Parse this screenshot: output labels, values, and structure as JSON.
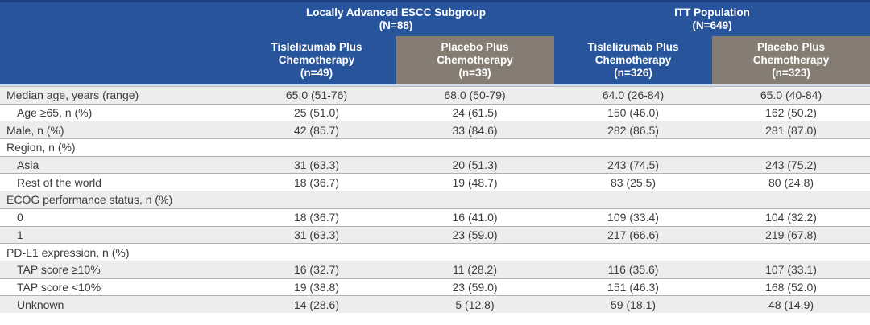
{
  "table": {
    "groups": [
      {
        "title": "Locally Advanced ESCC Subgroup",
        "n": "(N=88)"
      },
      {
        "title": "ITT Population",
        "n": "(N=649)"
      }
    ],
    "columns": [
      {
        "name": "Tislelizumab Plus Chemotherapy",
        "n": "(n=49)"
      },
      {
        "name": "Placebo Plus Chemotherapy",
        "n": "(n=39)"
      },
      {
        "name": "Tislelizumab Plus Chemotherapy",
        "n": "(n=326)"
      },
      {
        "name": "Placebo Plus Chemotherapy",
        "n": "(n=323)"
      }
    ],
    "rows": [
      {
        "label": "Median age, years (range)",
        "values": [
          "65.0 (51-76)",
          "68.0 (50-79)",
          "64.0 (26-84)",
          "65.0 (40-84)"
        ]
      },
      {
        "label": "Age ≥65, n (%)",
        "values": [
          "25 (51.0)",
          "24 (61.5)",
          "150 (46.0)",
          "162 (50.2)"
        ]
      },
      {
        "label": "Male, n (%)",
        "values": [
          "42 (85.7)",
          "33 (84.6)",
          "282 (86.5)",
          "281 (87.0)"
        ]
      },
      {
        "label": "Region, n (%)",
        "values": [
          "",
          "",
          "",
          ""
        ]
      },
      {
        "label": "Asia",
        "values": [
          "31 (63.3)",
          "20 (51.3)",
          "243 (74.5)",
          "243 (75.2)"
        ]
      },
      {
        "label": "Rest of the world",
        "values": [
          "18 (36.7)",
          "19 (48.7)",
          "83 (25.5)",
          "80 (24.8)"
        ]
      },
      {
        "label": "ECOG performance status, n (%)",
        "values": [
          "",
          "",
          "",
          ""
        ]
      },
      {
        "label": "0",
        "values": [
          "18 (36.7)",
          "16 (41.0)",
          "109 (33.4)",
          "104 (32.2)"
        ]
      },
      {
        "label": "1",
        "values": [
          "31 (63.3)",
          "23 (59.0)",
          "217 (66.6)",
          "219 (67.8)"
        ]
      },
      {
        "label": "PD-L1 expression, n (%)",
        "values": [
          "",
          "",
          "",
          ""
        ]
      },
      {
        "label": "TAP score ≥10%",
        "values": [
          "16 (32.7)",
          "11 (28.2)",
          "116 (35.6)",
          "107 (33.1)"
        ]
      },
      {
        "label": "TAP score <10%",
        "values": [
          "19 (38.8)",
          "23 (59.0)",
          "151 (46.3)",
          "168 (52.0)"
        ]
      },
      {
        "label": "Unknown",
        "values": [
          "14 (28.6)",
          "5 (12.8)",
          "59 (18.1)",
          "48 (14.9)"
        ]
      }
    ]
  },
  "colors": {
    "header_blue": "#27549B",
    "header_blue_dark_line": "#1B4283",
    "header_gray": "#857D74",
    "row_stripe": "#EDEDED",
    "row_border": "#B0B0B0",
    "header_underline": "#CFDBEE",
    "body_text": "#3C3C3C",
    "header_text": "#FFFFFF"
  }
}
